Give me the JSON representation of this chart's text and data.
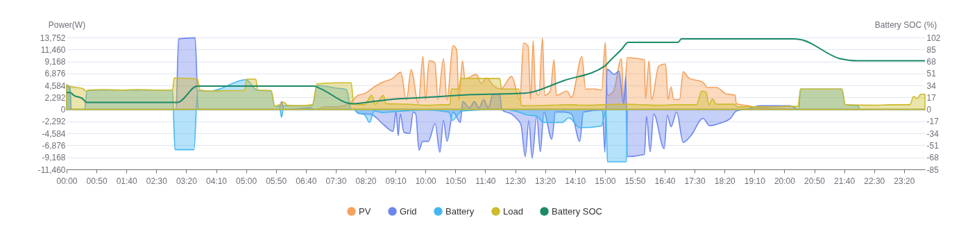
{
  "chart_data": {
    "type": "area",
    "ylabel": "Power(W)",
    "y2label": "Battery SOC (%)",
    "xlim": [
      0,
      23.9167
    ],
    "xticks": [
      {
        "value": 0,
        "label": "00:00"
      },
      {
        "value": 0.8333,
        "label": "00:50"
      },
      {
        "value": 1.6667,
        "label": "01:40"
      },
      {
        "value": 2.5,
        "label": "02:30"
      },
      {
        "value": 3.3333,
        "label": "03:20"
      },
      {
        "value": 4.1667,
        "label": "04:10"
      },
      {
        "value": 5,
        "label": "05:00"
      },
      {
        "value": 5.8333,
        "label": "05:50"
      },
      {
        "value": 6.6667,
        "label": "06:40"
      },
      {
        "value": 7.5,
        "label": "07:30"
      },
      {
        "value": 8.3333,
        "label": "08:20"
      },
      {
        "value": 9.1667,
        "label": "09:10"
      },
      {
        "value": 10,
        "label": "10:00"
      },
      {
        "value": 10.8333,
        "label": "10:50"
      },
      {
        "value": 11.6667,
        "label": "11:40"
      },
      {
        "value": 12.5,
        "label": "12:30"
      },
      {
        "value": 13.3333,
        "label": "13:20"
      },
      {
        "value": 14.1667,
        "label": "14:10"
      },
      {
        "value": 15,
        "label": "15:00"
      },
      {
        "value": 15.8333,
        "label": "15:50"
      },
      {
        "value": 16.6667,
        "label": "16:40"
      },
      {
        "value": 17.5,
        "label": "17:30"
      },
      {
        "value": 18.3333,
        "label": "18:20"
      },
      {
        "value": 19.1667,
        "label": "19:10"
      },
      {
        "value": 20,
        "label": "20:00"
      },
      {
        "value": 20.8333,
        "label": "20:50"
      },
      {
        "value": 21.6667,
        "label": "21:40"
      },
      {
        "value": 22.5,
        "label": "22:30"
      },
      {
        "value": 23.3333,
        "label": "23:20"
      }
    ],
    "ylim": [
      -11460,
      13752
    ],
    "yticks": [
      {
        "value": -11460,
        "label": "-11,460"
      },
      {
        "value": -9168,
        "label": "-9,168"
      },
      {
        "value": -6876,
        "label": "-6,876"
      },
      {
        "value": -4584,
        "label": "-4,584"
      },
      {
        "value": -2292,
        "label": "-2,292"
      },
      0,
      {
        "value": 2292,
        "label": "2,292"
      },
      {
        "value": 4584,
        "label": "4,584"
      },
      {
        "value": 6876,
        "label": "6,876"
      },
      {
        "value": 9168,
        "label": "9,168"
      },
      {
        "value": 11460,
        "label": "11,460"
      },
      {
        "value": 13752,
        "label": "13,752"
      }
    ],
    "y2lim": [
      -85,
      102
    ],
    "y2ticks": [
      -85,
      -68,
      -51,
      -34,
      -17,
      0,
      17,
      34,
      51,
      68,
      85,
      102
    ],
    "grid": "y",
    "legend": "bottom",
    "series": [
      {
        "name": "PV",
        "color": "#f5a25d",
        "x": [
          0,
          6.95,
          7.2,
          7.5,
          7.9,
          8.12,
          8.3,
          8.57,
          8.8,
          9.08,
          9.31,
          9.47,
          9.6,
          9.8,
          9.93,
          10.0,
          10.1,
          10.26,
          10.35,
          10.5,
          10.6,
          10.77,
          10.87,
          10.93,
          11.03,
          11.1,
          11.42,
          11.55,
          11.7,
          11.9,
          12.1,
          12.4,
          12.63,
          12.73,
          12.86,
          12.93,
          13.0,
          13.06,
          13.16,
          13.26,
          13.32,
          13.48,
          13.58,
          13.65,
          13.94,
          14.07,
          14.36,
          14.46,
          14.72,
          14.91,
          15.01,
          15.07,
          15.24,
          15.46,
          15.53,
          15.62,
          16.1,
          16.13,
          16.23,
          16.3,
          16.5,
          16.69,
          16.76,
          16.84,
          16.92,
          17.08,
          17.18,
          17.34,
          17.73,
          17.86,
          18.11,
          18.37,
          18.63,
          18.66,
          19.0,
          19.3,
          20.0,
          20.4,
          23.9167
        ],
        "values": [
          0,
          0,
          500,
          500,
          1200,
          2700,
          3000,
          4300,
          5200,
          5900,
          7100,
          1800,
          7600,
          1200,
          10100,
          1800,
          9300,
          9000,
          1800,
          9700,
          1800,
          12200,
          11400,
          1800,
          9300,
          5900,
          6700,
          5000,
          6000,
          4500,
          3900,
          6300,
          1800,
          12700,
          12100,
          1900,
          13100,
          3900,
          2700,
          13700,
          2700,
          3500,
          9500,
          2700,
          3500,
          2300,
          10100,
          3900,
          3900,
          3700,
          12800,
          2700,
          3500,
          9700,
          1200,
          9900,
          9500,
          2100,
          9300,
          1900,
          8300,
          8700,
          1900,
          4300,
          1900,
          1900,
          7200,
          6000,
          5200,
          4200,
          4200,
          3000,
          2700,
          1100,
          700,
          300,
          100,
          0,
          0
        ]
      },
      {
        "name": "Grid",
        "color": "#6e87ee",
        "x": [
          0,
          0.08,
          0.13,
          3.05,
          3.12,
          3.58,
          3.67,
          5.93,
          5.99,
          6.05,
          6.8,
          6.9,
          8.0,
          8.12,
          8.5,
          8.83,
          9.1,
          9.18,
          9.24,
          9.3,
          9.4,
          9.56,
          9.66,
          9.73,
          9.82,
          9.92,
          10.08,
          10.27,
          10.4,
          10.5,
          10.6,
          10.77,
          10.97,
          11.04,
          11.23,
          11.36,
          11.49,
          11.62,
          11.75,
          11.88,
          12.07,
          12.13,
          12.4,
          12.53,
          12.66,
          12.78,
          12.88,
          12.97,
          13.1,
          13.2,
          13.3,
          13.52,
          13.62,
          13.88,
          14.07,
          14.3,
          14.4,
          14.93,
          15.0,
          15.06,
          15.26,
          15.39,
          15.52,
          15.58,
          15.62,
          16.1,
          16.16,
          16.26,
          16.36,
          16.65,
          16.74,
          16.84,
          17.0,
          17.18,
          17.4,
          17.73,
          17.92,
          18.18,
          18.5,
          18.66,
          19.0,
          19.3,
          20.15,
          20.42,
          23.9167
        ],
        "values": [
          4700,
          4300,
          0,
          0,
          13500,
          13700,
          0,
          0,
          1500,
          0,
          300,
          0,
          0,
          -700,
          -1000,
          -2900,
          -4200,
          -400,
          -5000,
          -900,
          -4400,
          -4600,
          -500,
          -900,
          -7800,
          -6100,
          -6100,
          -2700,
          -8200,
          -2100,
          -6100,
          -500,
          -2500,
          1500,
          300,
          1500,
          300,
          1900,
          300,
          2900,
          2900,
          -100,
          -900,
          -1700,
          -2900,
          -9000,
          -2100,
          -9300,
          -1300,
          -8100,
          -500,
          -5700,
          -500,
          -500,
          -900,
          -6100,
          -500,
          -100,
          -8200,
          7700,
          6700,
          7300,
          1100,
          6300,
          -9000,
          -8600,
          -1300,
          -8100,
          -900,
          -7500,
          -1100,
          -3300,
          -500,
          -6300,
          -5000,
          -1700,
          -3100,
          -2700,
          -1700,
          -300,
          100,
          700,
          700,
          0,
          0
        ]
      },
      {
        "name": "Battery",
        "color": "#45b6f2",
        "x": [
          0,
          0.1,
          0.13,
          0.5,
          0.57,
          1.0,
          2.0,
          2.95,
          3.02,
          3.55,
          3.65,
          4.0,
          5.0,
          5.3,
          5.7,
          5.8,
          5.93,
          5.99,
          6.05,
          6.5,
          6.85,
          6.98,
          7.5,
          7.8,
          7.93,
          8.0,
          8.12,
          8.3,
          8.44,
          8.57,
          8.8,
          9.0,
          10.0,
          10.65,
          10.75,
          10.9,
          11.0,
          12.1,
          12.5,
          12.8,
          13.1,
          13.3,
          13.8,
          14.0,
          14.3,
          14.9,
          15.03,
          15.07,
          15.6,
          15.63,
          20.2,
          20.3,
          20.4,
          20.45,
          21.6,
          21.7,
          22.05,
          22.1,
          23.9167
        ],
        "values": [
          4300,
          4300,
          0,
          0,
          3600,
          3700,
          3700,
          3700,
          -7700,
          -7700,
          3600,
          3500,
          5700,
          3700,
          3500,
          600,
          600,
          -1500,
          700,
          700,
          800,
          4600,
          4100,
          3800,
          0,
          0,
          -700,
          -1000,
          -2500,
          -300,
          -600,
          -500,
          -100,
          -500,
          -2100,
          -1000,
          -300,
          0,
          -300,
          -1000,
          -1300,
          -2500,
          -2500,
          -1600,
          -3500,
          -3200,
          -300,
          -10000,
          -10000,
          0,
          0,
          200,
          0,
          3900,
          3900,
          900,
          700,
          0,
          0
        ]
      },
      {
        "name": "Load",
        "color": "#cdbb2c",
        "x": [
          0,
          0.1,
          0.45,
          0.55,
          0.6,
          1.0,
          1.5,
          2.0,
          2.5,
          2.95,
          3.0,
          3.5,
          3.65,
          3.72,
          4.0,
          4.5,
          4.95,
          5.02,
          5.27,
          5.33,
          5.7,
          5.8,
          5.95,
          6.05,
          6.15,
          6.5,
          6.85,
          6.98,
          7.5,
          7.93,
          8.0,
          8.3,
          8.5,
          8.6,
          8.83,
          8.9,
          9.5,
          10.0,
          10.5,
          10.68,
          10.72,
          10.93,
          10.98,
          11.5,
          12.07,
          12.12,
          12.6,
          12.68,
          13.5,
          14.0,
          14.5,
          15.0,
          15.5,
          16.0,
          16.5,
          17.0,
          17.55,
          17.7,
          17.82,
          17.9,
          18.0,
          18.1,
          18.6,
          18.7,
          19.5,
          20.2,
          20.38,
          20.45,
          21.0,
          21.6,
          21.7,
          22.5,
          23.0,
          23.5,
          23.6,
          23.7,
          23.8,
          23.9167
        ],
        "values": [
          4700,
          4400,
          4000,
          3500,
          3700,
          3800,
          3700,
          3800,
          3700,
          3700,
          6000,
          5900,
          5800,
          3700,
          3500,
          3600,
          3600,
          5800,
          5800,
          3700,
          3600,
          600,
          1000,
          1400,
          800,
          700,
          900,
          4900,
          5100,
          5100,
          1100,
          900,
          2700,
          1000,
          2700,
          1100,
          1000,
          800,
          900,
          900,
          3900,
          3900,
          5900,
          5900,
          5900,
          3900,
          3900,
          700,
          800,
          900,
          800,
          900,
          1000,
          900,
          800,
          900,
          900,
          3500,
          3300,
          900,
          2000,
          1000,
          1000,
          500,
          500,
          600,
          600,
          3900,
          3900,
          3900,
          900,
          800,
          900,
          900,
          2500,
          2100,
          2900,
          2900
        ]
      },
      {
        "name": "Battery SOC",
        "type": "line",
        "axis": "y2",
        "color": "#1b8a68",
        "x": [
          0,
          0.1,
          0.2,
          0.45,
          0.55,
          3.09,
          3.64,
          5.7,
          6.0,
          6.9,
          7.05,
          7.97,
          8.36,
          9.0,
          9.98,
          11.27,
          12.76,
          13.86,
          15.01,
          15.14,
          15.46,
          15.65,
          17.04,
          17.13,
          20.23,
          20.45,
          21.55,
          22.03,
          23.9167
        ],
        "values": [
          24,
          24,
          20,
          15,
          10,
          10,
          33,
          33,
          33,
          33,
          30,
          8,
          10,
          14,
          17,
          21,
          23,
          41,
          62,
          69,
          85,
          95,
          95,
          100,
          100,
          99,
          72,
          69,
          69
        ]
      }
    ]
  }
}
